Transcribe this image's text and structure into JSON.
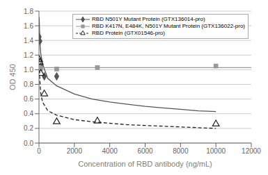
{
  "chart_data": {
    "type": "line",
    "title": "",
    "xlabel": "Concentration of RBD antibody (ng/mL)",
    "ylabel": "OD 450",
    "xlim": [
      0,
      12000
    ],
    "ylim": [
      0,
      1.8
    ],
    "xticks": [
      0,
      2000,
      4000,
      6000,
      8000,
      10000,
      12000
    ],
    "yticks": [
      {
        "value": 0,
        "label": "0.0"
      },
      0.2,
      0.4,
      0.6,
      0.8,
      {
        "value": 1.0,
        "label": "1.0"
      },
      1.2,
      1.4,
      1.6,
      1.8
    ],
    "grid": "y",
    "legend": "upper right",
    "series": [
      {
        "name": "RBD N501Y Mutant Protein (GTX136014-pro)",
        "color": "#555555",
        "marker": "diamond",
        "line_style": "solid",
        "x": [
          10,
          50,
          100,
          300,
          1000
        ],
        "values": [
          1.45,
          1.39,
          1.05,
          0.91,
          0.91
        ],
        "curve_x": [
          10,
          50,
          100,
          200,
          500,
          1000,
          2000,
          3000,
          4000,
          5000,
          6000,
          7000,
          8000,
          9000,
          10000
        ],
        "curve_values": [
          1.72,
          1.38,
          1.22,
          1.08,
          0.88,
          0.78,
          0.67,
          0.6,
          0.56,
          0.53,
          0.5,
          0.48,
          0.46,
          0.44,
          0.43
        ]
      },
      {
        "name": "RBD K417N, E484K, N501Y Mutant Protein (GTX136022-pro)",
        "color": "#999999",
        "marker": "square",
        "line_style": "solid",
        "x": [
          10,
          100,
          1000,
          3300,
          10000
        ],
        "values": [
          1.05,
          1.02,
          1.01,
          1.03,
          1.05
        ],
        "curve_x": [
          0,
          12000
        ],
        "curve_values": [
          1.03,
          1.03
        ]
      },
      {
        "name": "RBD Protein (GTX01546-pro)",
        "color": "#222222",
        "marker": "open_triangle",
        "line_style": "dashed",
        "x": [
          10,
          50,
          100,
          300,
          1000,
          3300,
          10000
        ],
        "values": [
          1.14,
          1.1,
          0.95,
          0.67,
          0.29,
          0.3,
          0.26
        ],
        "curve_x": [
          10,
          50,
          100,
          200,
          500,
          1000,
          2000,
          3000,
          4000,
          5000,
          6000,
          7000,
          8000,
          9000,
          10000
        ],
        "curve_values": [
          1.15,
          0.85,
          0.68,
          0.56,
          0.44,
          0.38,
          0.32,
          0.29,
          0.27,
          0.25,
          0.24,
          0.23,
          0.22,
          0.21,
          0.2
        ]
      }
    ]
  }
}
